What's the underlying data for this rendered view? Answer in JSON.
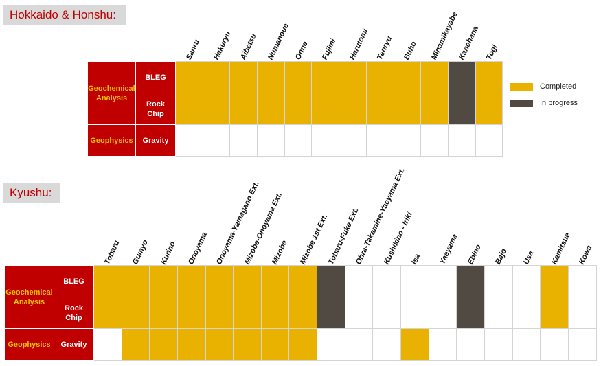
{
  "colors": {
    "completed": "#eab200",
    "in_progress": "#514a42",
    "header_red": "#c00000",
    "group_text": "#f0c000"
  },
  "legend": {
    "completed": "Completed",
    "in_progress": "In progress"
  },
  "regions": [
    {
      "title": "Hokkaido & Honshu:",
      "columns": [
        "Sanru",
        "Hakuryu",
        "Aibetsu",
        "Numanoue",
        "Onne",
        "Fujimi",
        "Harutomi",
        "Tenryu",
        "Buho",
        "Minamikayabe",
        "Kanehana",
        "Togi"
      ],
      "groups": [
        {
          "label": "Geochemical Analysis",
          "rows": [
            {
              "method": "BLEG",
              "status": [
                "C",
                "C",
                "C",
                "C",
                "C",
                "C",
                "C",
                "C",
                "C",
                "C",
                "P",
                "C"
              ]
            },
            {
              "method": "Rock Chip",
              "status": [
                "C",
                "C",
                "C",
                "C",
                "C",
                "C",
                "C",
                "C",
                "C",
                "C",
                "P",
                "C"
              ]
            }
          ]
        },
        {
          "label": "Geophysics",
          "rows": [
            {
              "method": "Gravity",
              "status": [
                "",
                "",
                "",
                "",
                "",
                "",
                "",
                "",
                "",
                "",
                "",
                ""
              ]
            }
          ]
        }
      ]
    },
    {
      "title": "Kyushu:",
      "columns": [
        "Tobaru",
        "Gumyo",
        "Kurino",
        "Onoyama",
        "Onoyama-Yamagano Ext.",
        "Mizobe-Onoyama Ext.",
        "Mizobe",
        "Mizobe 1st Ext.",
        "Tobaru-Fuke Ext.",
        "Ohra-Takamine-Yaeyama Ext.",
        "Kushikino - Iriki",
        "Isa",
        "Yaeyama",
        "Ebino",
        "Bajo",
        "Usa",
        "Kamitsue",
        "Kowa"
      ],
      "groups": [
        {
          "label": "Geochemical Analysis",
          "rows": [
            {
              "method": "BLEG",
              "status": [
                "C",
                "C",
                "C",
                "C",
                "C",
                "C",
                "C",
                "C",
                "P",
                "",
                "",
                "",
                "",
                "P",
                "",
                "",
                "C",
                ""
              ]
            },
            {
              "method": "Rock Chip",
              "status": [
                "C",
                "C",
                "C",
                "C",
                "C",
                "C",
                "C",
                "C",
                "P",
                "",
                "",
                "",
                "",
                "P",
                "",
                "",
                "C",
                ""
              ]
            }
          ]
        },
        {
          "label": "Geophysics",
          "rows": [
            {
              "method": "Gravity",
              "status": [
                "",
                "C",
                "C",
                "C",
                "C",
                "C",
                "C",
                "C",
                "",
                "",
                "",
                "C",
                "",
                "",
                "",
                "",
                "",
                ""
              ]
            }
          ]
        }
      ]
    }
  ]
}
